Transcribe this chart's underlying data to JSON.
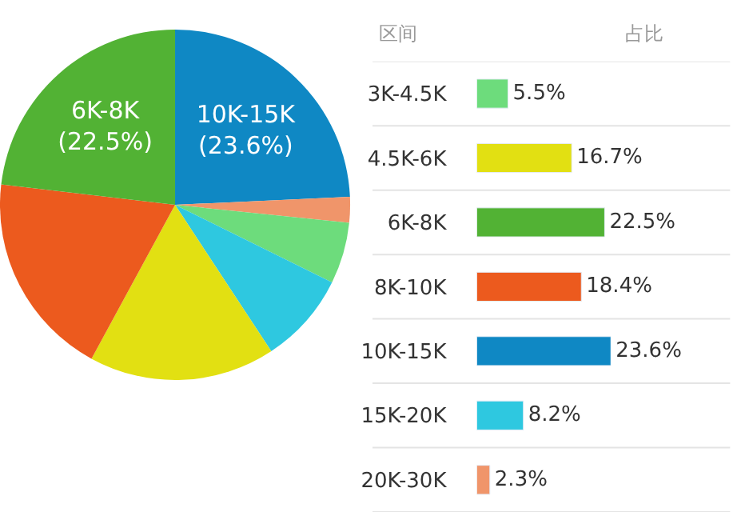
{
  "chart_data": [
    {
      "type": "pie",
      "categories": [
        null,
        null,
        null,
        null,
        null,
        null,
        null
      ],
      "values": [
        23.6,
        2.3,
        5.5,
        8.2,
        16.7,
        18.4,
        22.5
      ],
      "colors": [
        "#0f88c4",
        "#f0956a",
        "#6ddc7c",
        "#2ec8e0",
        "#e2e012",
        "#ec5a1e",
        "#52b234"
      ],
      "value_labels": [
        "10K-15K\n(23.6%)",
        null,
        null,
        null,
        null,
        null,
        "6K-8K\n(22.5%)"
      ],
      "legend": false
    },
    {
      "type": "bar",
      "orientation": "horizontal",
      "categories": [
        "3K-4.5K",
        "4.5K-6K",
        "6K-8K",
        "8K-10K",
        "10K-15K",
        "15K-20K",
        "20K-30K"
      ],
      "values": [
        5.5,
        16.7,
        22.5,
        18.4,
        23.6,
        8.2,
        2.3
      ],
      "colors": [
        "#6ddc7c",
        "#e2e012",
        "#52b234",
        "#ec5a1e",
        "#0f88c4",
        "#2ec8e0",
        "#f0956a"
      ],
      "value_labels": [
        "5.5%",
        "16.7%",
        "22.5%",
        "18.4%",
        "23.6%",
        "8.2%",
        "2.3%"
      ],
      "annotations": [
        "区间",
        "占比"
      ],
      "legend": false,
      "grid": "y"
    }
  ]
}
